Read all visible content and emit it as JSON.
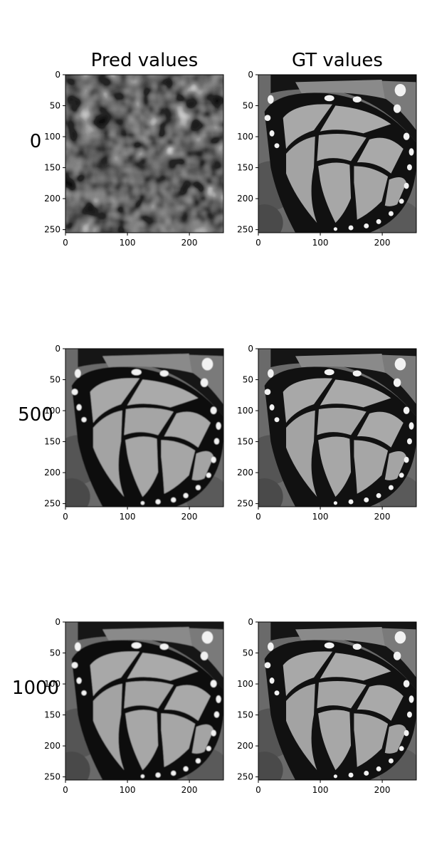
{
  "figure": {
    "col_titles": [
      "Pred values",
      "GT values"
    ],
    "row_labels": [
      "0",
      "500",
      "1000"
    ]
  },
  "chart_data": [
    {
      "type": "heatmap",
      "panel": "pred-0",
      "title": "Pred values",
      "row_label": "0",
      "xlim": [
        0,
        255
      ],
      "ylim": [
        255,
        0
      ],
      "xticks": [
        0,
        100,
        200
      ],
      "yticks": [
        0,
        50,
        100,
        150,
        200,
        250
      ],
      "colormap": "gray"
    },
    {
      "type": "heatmap",
      "panel": "gt-0",
      "title": "GT values",
      "row_label": "0",
      "xlim": [
        0,
        255
      ],
      "ylim": [
        255,
        0
      ],
      "xticks": [
        0,
        100,
        200
      ],
      "yticks": [
        0,
        50,
        100,
        150,
        200,
        250
      ],
      "colormap": "gray"
    },
    {
      "type": "heatmap",
      "panel": "pred-500",
      "row_label": "500",
      "xlim": [
        0,
        255
      ],
      "ylim": [
        255,
        0
      ],
      "xticks": [
        0,
        100,
        200
      ],
      "yticks": [
        0,
        50,
        100,
        150,
        200,
        250
      ],
      "colormap": "gray"
    },
    {
      "type": "heatmap",
      "panel": "gt-500",
      "row_label": "500",
      "xlim": [
        0,
        255
      ],
      "ylim": [
        255,
        0
      ],
      "xticks": [
        0,
        100,
        200
      ],
      "yticks": [
        0,
        50,
        100,
        150,
        200,
        250
      ],
      "colormap": "gray"
    },
    {
      "type": "heatmap",
      "panel": "pred-1000",
      "row_label": "1000",
      "xlim": [
        0,
        255
      ],
      "ylim": [
        255,
        0
      ],
      "xticks": [
        0,
        100,
        200
      ],
      "yticks": [
        0,
        50,
        100,
        150,
        200,
        250
      ],
      "colormap": "gray"
    },
    {
      "type": "heatmap",
      "panel": "gt-1000",
      "row_label": "1000",
      "xlim": [
        0,
        255
      ],
      "ylim": [
        255,
        0
      ],
      "xticks": [
        0,
        100,
        200
      ],
      "yticks": [
        0,
        50,
        100,
        150,
        200,
        250
      ],
      "colormap": "gray"
    }
  ]
}
